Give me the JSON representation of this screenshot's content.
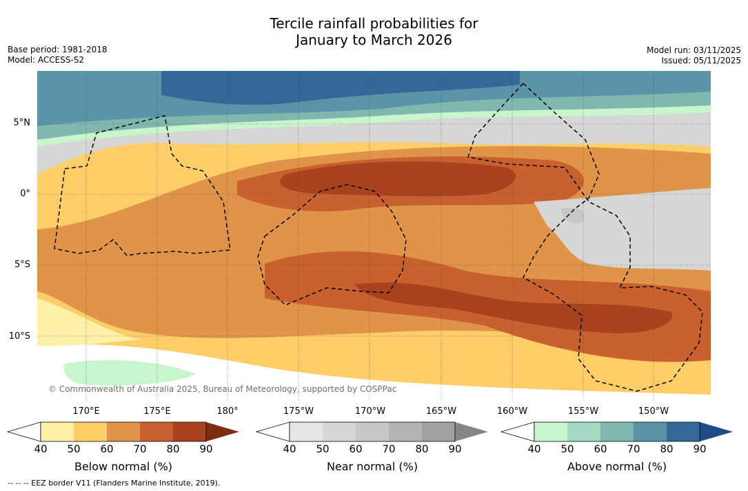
{
  "header": {
    "title_line1": "Tercile rainfall probabilities for",
    "title_line2": "January to March 2026",
    "base_period": "Base period: 1981-2018",
    "model": "Model: ACCESS-S2",
    "model_run": "Model run: 03/11/2025",
    "issued": "Issued: 05/11/2025"
  },
  "axes": {
    "lat_labels": [
      "5°N",
      "0°",
      "5°S",
      "10°S"
    ],
    "lon_labels": [
      "170°E",
      "175°E",
      "180°",
      "175°W",
      "170°W",
      "165°W",
      "160°W",
      "155°W",
      "150°W"
    ]
  },
  "map": {
    "copyright": "© Commonwealth of Australia 2025, Bureau of Meteorology, supported by COSPPac"
  },
  "colorbars": [
    {
      "label": "Below normal (%)",
      "ticks": [
        "40",
        "50",
        "60",
        "70",
        "80",
        "90"
      ],
      "colors": [
        "#fff0a8",
        "#fdce68",
        "#e0944a",
        "#c9612f",
        "#a9431f",
        "#7d2d12"
      ]
    },
    {
      "label": "Near normal (%)",
      "ticks": [
        "40",
        "50",
        "60",
        "70",
        "80",
        "90"
      ],
      "colors": [
        "#e6e6e6",
        "#d6d6d6",
        "#c6c6c6",
        "#b4b4b4",
        "#a0a0a0",
        "#858585"
      ]
    },
    {
      "label": "Above normal (%)",
      "ticks": [
        "40",
        "50",
        "60",
        "70",
        "80",
        "90"
      ],
      "colors": [
        "#c8f5cc",
        "#a6d9c2",
        "#80b8b0",
        "#5a94a6",
        "#336997",
        "#1f4a88"
      ]
    }
  ],
  "footer": {
    "eez_note": "--  --  -- EEZ border V11 (Flanders Marine Institute, 2019)."
  }
}
